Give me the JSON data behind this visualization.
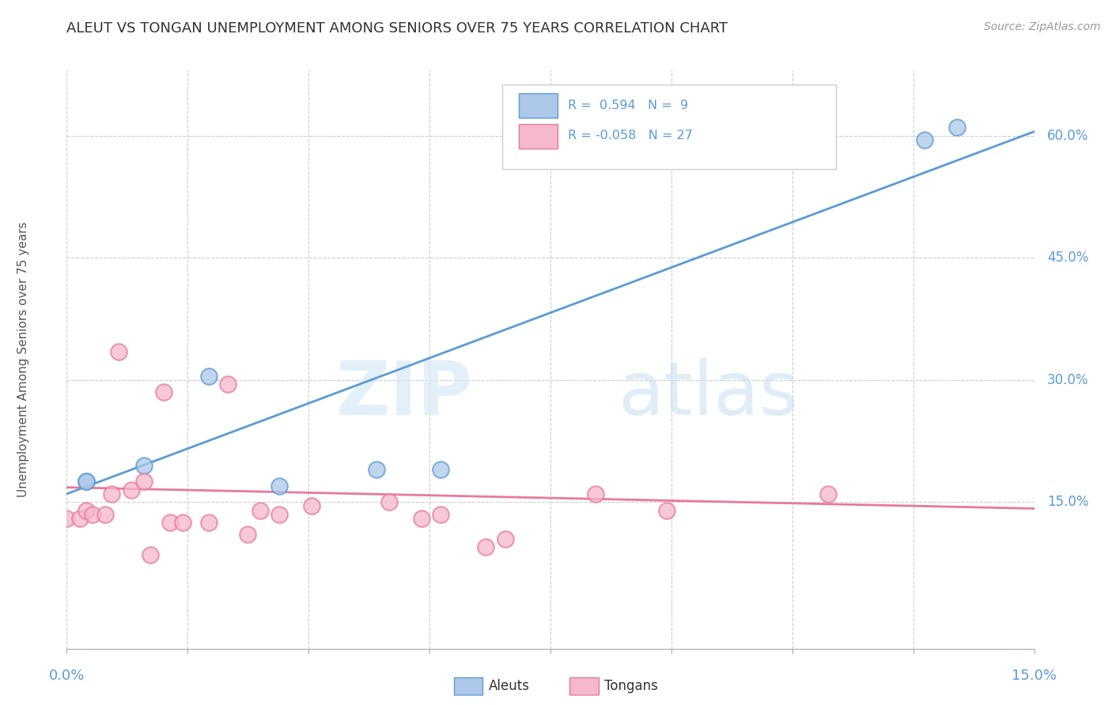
{
  "title": "ALEUT VS TONGAN UNEMPLOYMENT AMONG SENIORS OVER 75 YEARS CORRELATION CHART",
  "source": "Source: ZipAtlas.com",
  "ylabel": "Unemployment Among Seniors over 75 years",
  "ylabel_right_ticks": [
    "60.0%",
    "45.0%",
    "30.0%",
    "15.0%"
  ],
  "ylabel_right_vals": [
    0.6,
    0.45,
    0.3,
    0.15
  ],
  "xmin": 0.0,
  "xmax": 0.15,
  "ymin": -0.03,
  "ymax": 0.68,
  "watermark_zip": "ZIP",
  "watermark_atlas": "atlas",
  "aleut_R": "0.594",
  "aleut_N": "9",
  "tongan_R": "-0.058",
  "tongan_N": "27",
  "aleut_fill": "#adc8e8",
  "aleut_edge": "#5b9bd5",
  "tongan_fill": "#f5b8cc",
  "tongan_edge": "#e8799a",
  "aleut_line_color": "#5b9bd5",
  "tongan_line_color": "#e8799a",
  "legend_R_color": "#5b9bd5",
  "legend_N_color": "#5b9bd5",
  "aleut_points_x": [
    0.003,
    0.003,
    0.012,
    0.022,
    0.033,
    0.048,
    0.058,
    0.133,
    0.138
  ],
  "aleut_points_y": [
    0.175,
    0.175,
    0.195,
    0.305,
    0.17,
    0.19,
    0.19,
    0.595,
    0.61
  ],
  "tongan_points_x": [
    0.0,
    0.002,
    0.003,
    0.004,
    0.006,
    0.007,
    0.008,
    0.01,
    0.012,
    0.013,
    0.015,
    0.016,
    0.018,
    0.022,
    0.025,
    0.028,
    0.03,
    0.033,
    0.038,
    0.05,
    0.055,
    0.058,
    0.065,
    0.068,
    0.082,
    0.093,
    0.118
  ],
  "tongan_points_y": [
    0.13,
    0.13,
    0.14,
    0.135,
    0.135,
    0.16,
    0.335,
    0.165,
    0.175,
    0.085,
    0.285,
    0.125,
    0.125,
    0.125,
    0.295,
    0.11,
    0.14,
    0.135,
    0.145,
    0.15,
    0.13,
    0.135,
    0.095,
    0.105,
    0.16,
    0.14,
    0.16
  ],
  "aleut_line_x": [
    0.0,
    0.15
  ],
  "aleut_line_y": [
    0.16,
    0.605
  ],
  "tongan_line_x": [
    0.0,
    0.15
  ],
  "tongan_line_y": [
    0.168,
    0.142
  ],
  "grid_color": "#cccccc",
  "grid_style": "--",
  "background_color": "#ffffff",
  "scatter_size": 220,
  "scatter_alpha": 0.75
}
